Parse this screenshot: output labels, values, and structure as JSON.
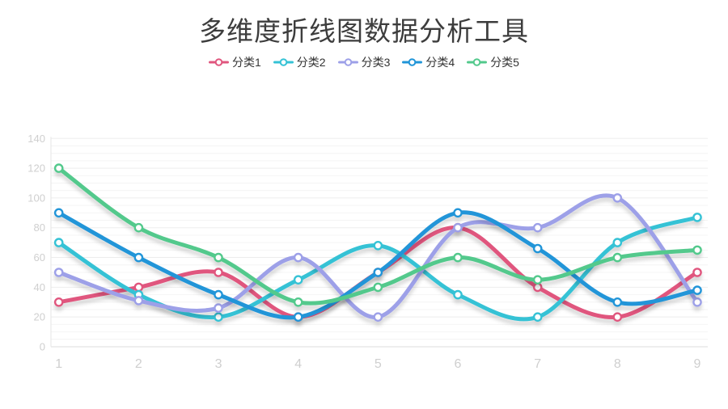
{
  "title": "多维度折线图数据分析工具",
  "legend": {
    "items": [
      {
        "label": "分类1",
        "color": "#e0567e"
      },
      {
        "label": "分类2",
        "color": "#35c2d5"
      },
      {
        "label": "分类3",
        "color": "#9da0e8"
      },
      {
        "label": "分类4",
        "color": "#2095d8"
      },
      {
        "label": "分类5",
        "color": "#53c98c"
      }
    ]
  },
  "chart_data": {
    "type": "line",
    "smooth": true,
    "title": "多维度折线图数据分析工具",
    "categories": [
      "1",
      "2",
      "3",
      "4",
      "5",
      "6",
      "7",
      "8",
      "9"
    ],
    "series": [
      {
        "name": "分类1",
        "color": "#e0567e",
        "values": [
          30,
          40,
          50,
          20,
          50,
          80,
          40,
          20,
          50
        ]
      },
      {
        "name": "分类2",
        "color": "#35c2d5",
        "values": [
          70,
          35,
          20,
          45,
          68,
          35,
          20,
          70,
          87
        ]
      },
      {
        "name": "分类3",
        "color": "#9da0e8",
        "values": [
          50,
          31,
          26,
          60,
          20,
          80,
          80,
          100,
          30
        ]
      },
      {
        "name": "分类4",
        "color": "#2095d8",
        "values": [
          90,
          60,
          35,
          20,
          50,
          90,
          66,
          30,
          38
        ]
      },
      {
        "name": "分类5",
        "color": "#53c98c",
        "values": [
          120,
          80,
          60,
          30,
          40,
          60,
          45,
          60,
          65
        ]
      }
    ],
    "xlabel": "",
    "ylabel": "",
    "ylim": [
      0,
      140
    ],
    "y_ticks": [
      "0",
      "20",
      "40",
      "60",
      "80",
      "100",
      "120",
      "140"
    ],
    "legend_position": "top",
    "grid": "horizontal-light",
    "axis_label_color": "#cfcfcf",
    "point_style": "hollow-circle"
  }
}
